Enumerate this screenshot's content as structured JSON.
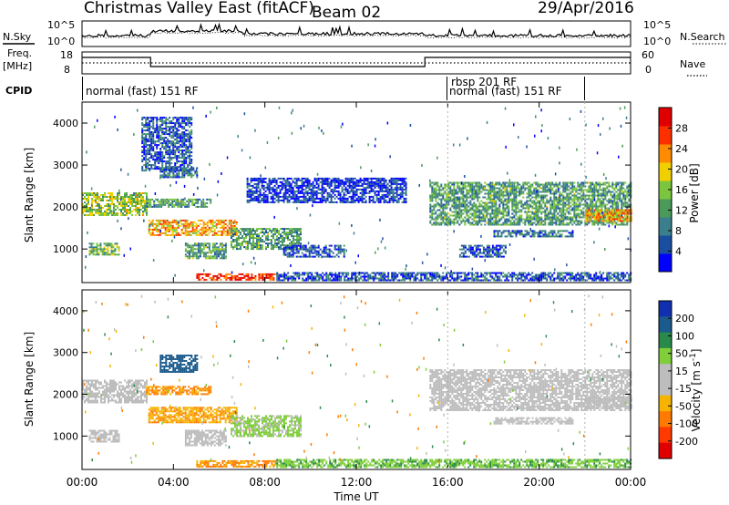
{
  "header": {
    "radar_name": "Christmas Valley East (fitACF)",
    "beam": "Beam 02",
    "date": "29/Apr/2016"
  },
  "side_labels": {
    "nsky": "N.Sky",
    "nsearch": "N.Search",
    "freq": "Freq.",
    "freq_unit": "[MHz]",
    "nave": "Nave",
    "cpid": "CPID"
  },
  "noise_panel": {
    "tick_top": "10^5",
    "tick_bottom": "10^0"
  },
  "freq_panel": {
    "left_ticks": [
      "18",
      "8"
    ],
    "right_ticks": [
      "60",
      "0"
    ]
  },
  "cpid_labels": [
    "normal (fast) 151 RF",
    "rbsp 201 RF",
    "normal (fast) 151 RF"
  ],
  "colors": {
    "power_scale": [
      "#0000ff",
      "#1a4fa0",
      "#3b7f8c",
      "#4c9a5a",
      "#7cc63f",
      "#f0d000",
      "#ff8c00",
      "#ff3000",
      "#e00000"
    ],
    "velocity_scale": [
      "#1030b0",
      "#1b5a8c",
      "#2a8a4a",
      "#7fce3a",
      "#bdbdbd",
      "#bdbdbd",
      "#f6b400",
      "#ff7a00",
      "#ff3a00",
      "#e00000"
    ]
  },
  "chart_data": [
    {
      "type": "heatmap",
      "panel": "power",
      "xlabel": "Time UT",
      "ylabel": "Slant Range [km]",
      "x_ticks": [
        "00:00",
        "04:00",
        "08:00",
        "12:00",
        "16:00",
        "20:00",
        "00:00"
      ],
      "y_ticks": [
        1000,
        2000,
        3000,
        4000
      ],
      "ylim": [
        200,
        4500
      ],
      "xlim_hours": [
        0,
        24
      ],
      "colorbar": {
        "label": "Power [dB]",
        "ticks": [
          4,
          8,
          12,
          16,
          20,
          24,
          28
        ],
        "range": [
          0,
          32
        ]
      },
      "echo_regions": [
        {
          "t0": 0.0,
          "t1": 2.8,
          "r0": 1800,
          "r1": 2350,
          "level": 16
        },
        {
          "t0": 0.3,
          "t1": 1.6,
          "r0": 850,
          "r1": 1150,
          "level": 14
        },
        {
          "t0": 2.6,
          "t1": 4.8,
          "r0": 2850,
          "r1": 4150,
          "level": 6
        },
        {
          "t0": 3.4,
          "t1": 5.0,
          "r0": 2700,
          "r1": 2950,
          "level": 8
        },
        {
          "t0": 2.8,
          "t1": 5.6,
          "r0": 2000,
          "r1": 2200,
          "level": 12
        },
        {
          "t0": 2.9,
          "t1": 6.8,
          "r0": 1350,
          "r1": 1700,
          "level": 22
        },
        {
          "t0": 4.5,
          "t1": 6.3,
          "r0": 800,
          "r1": 1150,
          "level": 12
        },
        {
          "t0": 6.5,
          "t1": 9.6,
          "r0": 1000,
          "r1": 1500,
          "level": 12
        },
        {
          "t0": 8.8,
          "t1": 11.5,
          "r0": 800,
          "r1": 1100,
          "level": 6
        },
        {
          "t0": 7.2,
          "t1": 14.2,
          "r0": 2100,
          "r1": 2700,
          "level": 4
        },
        {
          "t0": 5.0,
          "t1": 8.5,
          "r0": 250,
          "r1": 420,
          "level": 28
        },
        {
          "t0": 8.5,
          "t1": 24.0,
          "r0": 250,
          "r1": 450,
          "level": 6
        },
        {
          "t0": 15.2,
          "t1": 24.0,
          "r0": 1600,
          "r1": 2600,
          "level": 12
        },
        {
          "t0": 18.0,
          "t1": 21.5,
          "r0": 1300,
          "r1": 1450,
          "level": 8
        },
        {
          "t0": 22.0,
          "t1": 24.0,
          "r0": 1650,
          "r1": 1950,
          "level": 22
        },
        {
          "t0": 16.5,
          "t1": 18.5,
          "r0": 800,
          "r1": 1100,
          "level": 6
        }
      ]
    },
    {
      "type": "heatmap",
      "panel": "velocity",
      "xlabel": "Time UT",
      "ylabel": "Slant Range [km]",
      "x_ticks": [
        "00:00",
        "04:00",
        "08:00",
        "12:00",
        "16:00",
        "20:00",
        "00:00"
      ],
      "y_ticks": [
        1000,
        2000,
        3000,
        4000
      ],
      "ylim": [
        200,
        4500
      ],
      "xlim_hours": [
        0,
        24
      ],
      "colorbar": {
        "label": "Velocity [m s^-1]",
        "ticks": [
          200,
          100,
          50,
          15,
          -15,
          -50,
          -100,
          -200
        ],
        "range": [
          -250,
          250
        ]
      },
      "echo_regions": [
        {
          "t0": 0.0,
          "t1": 2.8,
          "r0": 1800,
          "r1": 2350,
          "level": 0
        },
        {
          "t0": 0.3,
          "t1": 1.6,
          "r0": 850,
          "r1": 1150,
          "level": 0
        },
        {
          "t0": 3.4,
          "t1": 5.0,
          "r0": 2550,
          "r1": 2950,
          "level": 130
        },
        {
          "t0": 2.8,
          "t1": 5.6,
          "r0": 2000,
          "r1": 2200,
          "level": -40
        },
        {
          "t0": 2.9,
          "t1": 6.8,
          "r0": 1350,
          "r1": 1700,
          "level": -30
        },
        {
          "t0": 4.5,
          "t1": 6.3,
          "r0": 800,
          "r1": 1150,
          "level": 0
        },
        {
          "t0": 6.5,
          "t1": 9.6,
          "r0": 1000,
          "r1": 1500,
          "level": 20
        },
        {
          "t0": 5.0,
          "t1": 8.5,
          "r0": 250,
          "r1": 420,
          "level": -40
        },
        {
          "t0": 8.5,
          "t1": 24.0,
          "r0": 250,
          "r1": 450,
          "level": 30
        },
        {
          "t0": 15.2,
          "t1": 24.0,
          "r0": 1600,
          "r1": 2600,
          "level": 0
        },
        {
          "t0": 18.0,
          "t1": 21.5,
          "r0": 1300,
          "r1": 1450,
          "level": 0
        },
        {
          "t0": 22.0,
          "t1": 24.0,
          "r0": 1650,
          "r1": 1950,
          "level": 0
        }
      ]
    }
  ]
}
